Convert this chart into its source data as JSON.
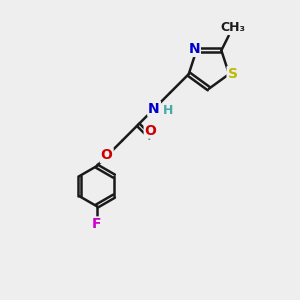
{
  "bg_color": "#eeeeee",
  "bond_color": "#1a1a1a",
  "bond_width": 1.8,
  "dbo": 0.055,
  "atom_colors": {
    "N": "#0000cc",
    "O": "#cc0000",
    "S": "#bbbb00",
    "F": "#cc00cc",
    "H": "#44aaaa",
    "C": "#1a1a1a"
  },
  "fs": 10,
  "fss": 9,
  "xlim": [
    0,
    10
  ],
  "ylim": [
    0,
    10
  ]
}
